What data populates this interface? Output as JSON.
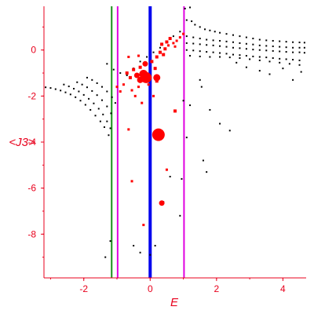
{
  "chart_data": {
    "type": "scatter",
    "title": "",
    "xlabel": "E",
    "ylabel": "<J3>",
    "xlim": [
      -3.2,
      4.7
    ],
    "ylim": [
      -9.9,
      1.9
    ],
    "x_ticks": [
      "-2",
      "0",
      "2",
      "4"
    ],
    "x_tick_values": [
      -2,
      0,
      2,
      4
    ],
    "y_ticks": [
      "0",
      "-2",
      "-4",
      "-6",
      "-8"
    ],
    "y_tick_values": [
      0,
      -2,
      -4,
      -6,
      -8
    ],
    "axis_color": "#e8001c",
    "vertical_lines": [
      {
        "x": -1.16,
        "color": "#1a8f1a",
        "style": "thin"
      },
      {
        "x": -0.98,
        "color": "#e000e0",
        "style": "thin"
      },
      {
        "x": 0.0,
        "color": "#0000ee",
        "style": "thick"
      },
      {
        "x": 1.02,
        "color": "#e000e0",
        "style": "thin"
      }
    ],
    "series": [
      {
        "color": "#000000",
        "marker": "small-dot",
        "points": [
          [
            -3.15,
            -1.62
          ],
          [
            -3.0,
            -1.65
          ],
          [
            -2.85,
            -1.7
          ],
          [
            -2.7,
            -1.76
          ],
          [
            -2.55,
            -1.84
          ],
          [
            -2.4,
            -1.93
          ],
          [
            -2.25,
            -2.05
          ],
          [
            -2.1,
            -2.2
          ],
          [
            -1.95,
            -2.38
          ],
          [
            -1.8,
            -2.6
          ],
          [
            -1.65,
            -2.85
          ],
          [
            -1.5,
            -3.1
          ],
          [
            -1.38,
            -3.35
          ],
          [
            -1.25,
            -3.7
          ],
          [
            -2.6,
            -1.5
          ],
          [
            -2.45,
            -1.58
          ],
          [
            -2.3,
            -1.68
          ],
          [
            -2.15,
            -1.8
          ],
          [
            -2.0,
            -1.95
          ],
          [
            -1.85,
            -2.12
          ],
          [
            -1.7,
            -2.32
          ],
          [
            -1.55,
            -2.55
          ],
          [
            -1.42,
            -2.8
          ],
          [
            -1.3,
            -3.1
          ],
          [
            -1.2,
            -3.4
          ],
          [
            -2.2,
            -1.4
          ],
          [
            -2.05,
            -1.5
          ],
          [
            -1.9,
            -1.62
          ],
          [
            -1.75,
            -1.78
          ],
          [
            -1.6,
            -1.96
          ],
          [
            -1.45,
            -2.18
          ],
          [
            -1.3,
            -2.45
          ],
          [
            -1.18,
            -2.75
          ],
          [
            -1.9,
            -1.2
          ],
          [
            -1.75,
            -1.3
          ],
          [
            -1.6,
            -1.44
          ],
          [
            -1.45,
            -1.6
          ],
          [
            -1.3,
            -1.8
          ],
          [
            -1.15,
            -2.05
          ],
          [
            -1.05,
            -2.3
          ],
          [
            -1.3,
            -0.6
          ],
          [
            -1.1,
            -0.85
          ],
          [
            -0.9,
            -1.0
          ],
          [
            -0.7,
            -1.1
          ],
          [
            -0.5,
            -0.8
          ],
          [
            -0.3,
            -0.5
          ],
          [
            -0.1,
            -0.3
          ],
          [
            0.1,
            -0.1
          ],
          [
            0.3,
            0.1
          ],
          [
            0.5,
            0.35
          ],
          [
            0.7,
            0.6
          ],
          [
            0.9,
            0.8
          ],
          [
            1.05,
            1.8
          ],
          [
            1.2,
            1.85
          ],
          [
            1.1,
            1.3
          ],
          [
            1.25,
            1.25
          ],
          [
            1.35,
            1.1
          ],
          [
            1.5,
            1.0
          ],
          [
            1.65,
            0.9
          ],
          [
            1.8,
            0.85
          ],
          [
            1.95,
            0.8
          ],
          [
            2.1,
            0.75
          ],
          [
            2.3,
            0.7
          ],
          [
            2.5,
            0.65
          ],
          [
            2.7,
            0.6
          ],
          [
            2.9,
            0.55
          ],
          [
            3.1,
            0.5
          ],
          [
            3.3,
            0.45
          ],
          [
            3.5,
            0.42
          ],
          [
            3.7,
            0.4
          ],
          [
            3.9,
            0.38
          ],
          [
            4.1,
            0.36
          ],
          [
            4.3,
            0.34
          ],
          [
            4.5,
            0.33
          ],
          [
            4.65,
            0.32
          ],
          [
            1.1,
            0.6
          ],
          [
            1.3,
            0.55
          ],
          [
            1.5,
            0.5
          ],
          [
            1.7,
            0.45
          ],
          [
            1.9,
            0.42
          ],
          [
            2.1,
            0.4
          ],
          [
            2.3,
            0.37
          ],
          [
            2.5,
            0.34
          ],
          [
            2.7,
            0.3
          ],
          [
            2.9,
            0.27
          ],
          [
            3.1,
            0.24
          ],
          [
            3.3,
            0.2
          ],
          [
            3.5,
            0.18
          ],
          [
            3.7,
            0.16
          ],
          [
            3.9,
            0.14
          ],
          [
            4.1,
            0.12
          ],
          [
            4.3,
            0.1
          ],
          [
            4.5,
            0.1
          ],
          [
            4.65,
            0.1
          ],
          [
            1.1,
            0.3
          ],
          [
            1.3,
            0.28
          ],
          [
            1.5,
            0.25
          ],
          [
            1.7,
            0.22
          ],
          [
            1.9,
            0.2
          ],
          [
            2.1,
            0.17
          ],
          [
            2.3,
            0.14
          ],
          [
            2.5,
            0.1
          ],
          [
            2.7,
            0.08
          ],
          [
            2.9,
            0.05
          ],
          [
            3.1,
            0.02
          ],
          [
            3.3,
            0.0
          ],
          [
            3.5,
            -0.02
          ],
          [
            3.7,
            -0.04
          ],
          [
            3.9,
            -0.06
          ],
          [
            4.1,
            -0.08
          ],
          [
            4.3,
            -0.1
          ],
          [
            4.5,
            -0.1
          ],
          [
            4.65,
            -0.12
          ],
          [
            1.1,
            0.0
          ],
          [
            1.3,
            -0.02
          ],
          [
            1.5,
            -0.05
          ],
          [
            1.7,
            -0.08
          ],
          [
            1.9,
            -0.1
          ],
          [
            2.1,
            -0.13
          ],
          [
            2.3,
            -0.16
          ],
          [
            2.5,
            -0.2
          ],
          [
            2.7,
            -0.22
          ],
          [
            2.9,
            -0.25
          ],
          [
            3.1,
            -0.28
          ],
          [
            3.3,
            -0.3
          ],
          [
            3.5,
            -0.32
          ],
          [
            3.7,
            -0.35
          ],
          [
            3.9,
            -0.38
          ],
          [
            4.1,
            -0.4
          ],
          [
            4.3,
            -0.42
          ],
          [
            4.5,
            -0.45
          ],
          [
            1.2,
            -0.25
          ],
          [
            1.5,
            -0.28
          ],
          [
            1.8,
            -0.3
          ],
          [
            2.1,
            -0.3
          ],
          [
            2.4,
            -0.32
          ],
          [
            2.7,
            -0.35
          ],
          [
            3.0,
            -0.4
          ],
          [
            3.3,
            -0.45
          ],
          [
            3.6,
            -0.5
          ],
          [
            3.9,
            -0.55
          ],
          [
            4.2,
            -0.6
          ],
          [
            4.5,
            -0.65
          ],
          [
            2.6,
            -0.55
          ],
          [
            2.9,
            -0.75
          ],
          [
            3.3,
            -0.9
          ],
          [
            3.6,
            -1.05
          ],
          [
            4.0,
            -0.8
          ],
          [
            4.3,
            -1.3
          ],
          [
            4.55,
            -0.95
          ],
          [
            1.5,
            -1.3
          ],
          [
            1.55,
            -1.6
          ],
          [
            1.0,
            -2.2
          ],
          [
            1.2,
            -2.4
          ],
          [
            1.8,
            -2.6
          ],
          [
            2.1,
            -3.2
          ],
          [
            2.4,
            -3.5
          ],
          [
            1.1,
            -3.8
          ],
          [
            1.6,
            -4.8
          ],
          [
            1.7,
            -5.3
          ],
          [
            0.6,
            -5.5
          ],
          [
            0.95,
            -5.6
          ],
          [
            0.9,
            -7.2
          ],
          [
            0.4,
            -6.6
          ],
          [
            -0.5,
            -8.5
          ],
          [
            -0.3,
            -8.8
          ],
          [
            -1.2,
            -8.3
          ],
          [
            -1.35,
            -9.0
          ],
          [
            0.0,
            -8.9
          ],
          [
            0.15,
            -8.5
          ]
        ]
      },
      {
        "color": "#ff0000",
        "marker": "filled-circle-square",
        "points": [
          [
            -0.12,
            -1.2
          ],
          [
            -0.2,
            -1.05
          ],
          [
            0.2,
            -1.2
          ],
          [
            0.25,
            -3.68
          ],
          [
            -0.3,
            -1.3
          ],
          [
            -0.4,
            -1.1
          ],
          [
            -0.5,
            -0.85
          ],
          [
            -0.6,
            -1.2
          ],
          [
            -0.7,
            -1.0
          ],
          [
            -0.3,
            -0.75
          ],
          [
            -0.15,
            -0.6
          ],
          [
            0.05,
            -0.5
          ],
          [
            0.2,
            -0.3
          ],
          [
            0.3,
            -0.1
          ],
          [
            0.45,
            0.05
          ],
          [
            0.55,
            0.2
          ],
          [
            0.7,
            0.3
          ],
          [
            0.8,
            0.4
          ],
          [
            0.9,
            0.55
          ],
          [
            1.0,
            0.7
          ],
          [
            0.6,
            0.5
          ],
          [
            0.35,
            0.25
          ],
          [
            0.5,
            0.35
          ],
          [
            0.75,
            0.15
          ],
          [
            0.4,
            -0.2
          ],
          [
            0.15,
            -0.8
          ],
          [
            -0.8,
            -1.5
          ],
          [
            -0.9,
            -1.8
          ],
          [
            -1.0,
            -1.6
          ],
          [
            -0.55,
            -1.75
          ],
          [
            -0.45,
            -2.0
          ],
          [
            -0.25,
            -2.3
          ],
          [
            -0.35,
            -1.6
          ],
          [
            -0.65,
            -0.3
          ],
          [
            -0.35,
            -0.25
          ],
          [
            0.75,
            -2.65
          ],
          [
            -0.65,
            -3.45
          ],
          [
            0.35,
            -6.65
          ],
          [
            0.5,
            -5.2
          ],
          [
            -0.55,
            -5.7
          ],
          [
            -0.2,
            -7.6
          ],
          [
            0.2,
            -1.35
          ],
          [
            -0.05,
            -1.5
          ],
          [
            0.1,
            -2.0
          ]
        ],
        "sizes": [
          12,
          9,
          7,
          14,
          6,
          5,
          4,
          4,
          4,
          4,
          5,
          4,
          4,
          4,
          4,
          3,
          3,
          3,
          3,
          3,
          4,
          4,
          4,
          3,
          4,
          4,
          3,
          3,
          3,
          3,
          3,
          3,
          3,
          3,
          3,
          4,
          3,
          5,
          3,
          3,
          3,
          4,
          3,
          3
        ]
      }
    ]
  }
}
